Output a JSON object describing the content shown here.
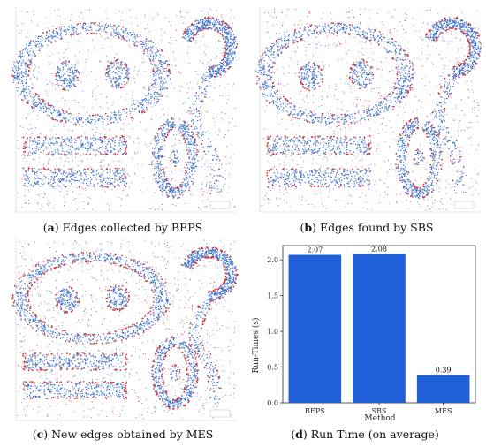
{
  "figure": {
    "panels": [
      {
        "letter": "a",
        "caption": "Edges collected by BEPS"
      },
      {
        "letter": "b",
        "caption": "Edges found by SBS"
      },
      {
        "letter": "c",
        "caption": "New edges obtained by MES"
      },
      {
        "letter": "d",
        "caption": "Run Time (on average)"
      }
    ]
  },
  "scatter_colors": {
    "interior": "#3b6fd0",
    "edge": "#d63a3a",
    "noise_blue": "#5a86dd"
  },
  "chart_data": [
    {
      "type": "scatter",
      "title": "Edges collected by BEPS",
      "series": [
        {
          "name": "interior points"
        },
        {
          "name": "edge points"
        }
      ],
      "shapes": [
        "ellipse-ring",
        "eyes",
        "question-mark",
        "bars",
        "letter-a",
        "letter-i"
      ]
    },
    {
      "type": "scatter",
      "title": "Edges found by SBS",
      "series": [
        {
          "name": "interior points"
        },
        {
          "name": "edge points"
        }
      ],
      "shapes": [
        "ellipse-ring",
        "eyes",
        "question-mark",
        "bars",
        "letter-a",
        "letter-i"
      ]
    },
    {
      "type": "scatter",
      "title": "New edges obtained by MES",
      "series": [
        {
          "name": "interior points"
        },
        {
          "name": "edge points"
        }
      ],
      "shapes": [
        "ellipse-ring",
        "eyes",
        "question-mark",
        "bars",
        "letter-a",
        "letter-i"
      ]
    },
    {
      "type": "bar",
      "title": "Run Time (on average)",
      "categories": [
        "BEPS",
        "SBS",
        "MES"
      ],
      "values": [
        2.07,
        2.08,
        0.39
      ],
      "value_labels": [
        "2.07",
        "2.08",
        "0.39"
      ],
      "xlabel": "Method",
      "ylabel": "Run-Times (s)",
      "ylim": [
        0,
        2.2
      ],
      "yticks": [
        "0.0",
        "0.5",
        "1.0",
        "1.5",
        "2.0"
      ],
      "ytick_values": [
        0,
        0.5,
        1.0,
        1.5,
        2.0
      ],
      "color": "#1f5fd8",
      "grid": false,
      "legend": "none"
    }
  ]
}
